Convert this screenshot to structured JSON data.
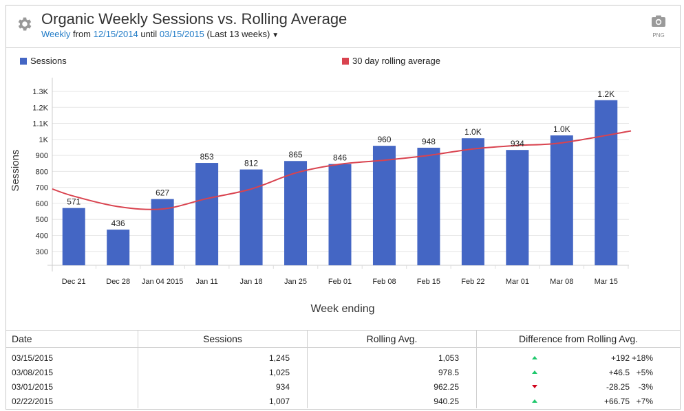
{
  "header": {
    "title": "Organic Weekly Sessions vs. Rolling Average",
    "subtitle": {
      "granularity": "Weekly",
      "from_label": "from",
      "start_date": "12/15/2014",
      "until_label": "until",
      "end_date": "03/15/2015",
      "range": "(Last 13 weeks)",
      "dropdown_icon": "caret-down-icon"
    },
    "settings_icon": "gear-icon",
    "export_icon": "camera-icon",
    "export_label": "PNG"
  },
  "colors": {
    "sessions_bar": "#4466c4",
    "rolling_line": "#d9434f",
    "link": "#1f7ac6",
    "up": "#1ec86c",
    "down": "#d0021b"
  },
  "chart_data": {
    "type": "bar",
    "title": "Organic Weekly Sessions vs. Rolling Average",
    "xlabel": "Week ending",
    "ylabel": "Sessions",
    "categories": [
      "Dec 21",
      "Dec 28",
      "Jan 04 2015",
      "Jan 11",
      "Jan 18",
      "Jan 25",
      "Feb 01",
      "Feb 08",
      "Feb 15",
      "Feb 22",
      "Mar 01",
      "Mar 08",
      "Mar 15"
    ],
    "series": [
      {
        "name": "Sessions",
        "type": "bar",
        "values": [
          571,
          436,
          627,
          853,
          812,
          865,
          846,
          960,
          948,
          1007,
          934,
          1025,
          1245
        ],
        "data_labels": [
          "571",
          "436",
          "627",
          "853",
          "812",
          "865",
          "846",
          "960",
          "948",
          "1.0K",
          "934",
          "1.0K",
          "1.2K"
        ]
      },
      {
        "name": "30 day rolling average",
        "type": "line",
        "values": [
          645,
          580,
          565,
          630,
          690,
          790,
          845,
          870,
          900,
          940.25,
          962.25,
          978.5,
          1053
        ],
        "start_value": 690
      }
    ],
    "yticks": [
      300,
      400,
      500,
      600,
      700,
      800,
      900,
      1000,
      1100,
      1200,
      1300
    ],
    "ytick_labels": [
      "300",
      "400",
      "500",
      "600",
      "700",
      "800",
      "900",
      "1K",
      "1.1K",
      "1.2K",
      "1.3K"
    ],
    "ylim": [
      213,
      1300
    ],
    "grid": true,
    "legend": [
      "Sessions",
      "30 day rolling average"
    ],
    "legend_position": "top"
  },
  "table": {
    "columns": [
      "Date",
      "Sessions",
      "Rolling Avg.",
      "Difference from Rolling Avg."
    ],
    "rows": [
      {
        "date": "03/15/2015",
        "sessions": "1,245",
        "rolling": "1,053",
        "direction": "up",
        "diff": "+192",
        "pct": "+18%"
      },
      {
        "date": "03/08/2015",
        "sessions": "1,025",
        "rolling": "978.5",
        "direction": "up",
        "diff": "+46.5",
        "pct": "+5%"
      },
      {
        "date": "03/01/2015",
        "sessions": "934",
        "rolling": "962.25",
        "direction": "down",
        "diff": "-28.25",
        "pct": "-3%"
      },
      {
        "date": "02/22/2015",
        "sessions": "1,007",
        "rolling": "940.25",
        "direction": "up",
        "diff": "+66.75",
        "pct": "+7%"
      }
    ]
  }
}
